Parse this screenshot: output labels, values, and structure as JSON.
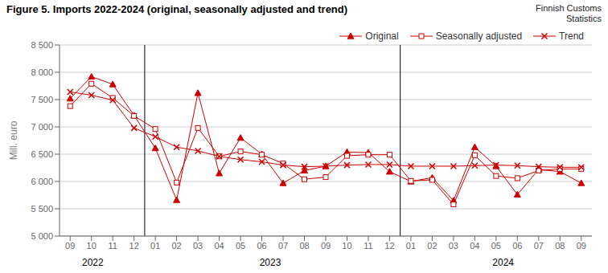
{
  "chart_data": {
    "type": "line",
    "title": "Figure 5. Imports  2022-2024  (original, seasonally adjusted and trend)",
    "subtitle": "Finnish Customs\nStatistics",
    "ylabel": "Mill. euro",
    "ylim": [
      5000,
      8500
    ],
    "yticks": [
      {
        "value": 5000,
        "label": "5 000"
      },
      {
        "value": 5500,
        "label": "5 500"
      },
      {
        "value": 6000,
        "label": "6 000"
      },
      {
        "value": 6500,
        "label": "6 500"
      },
      {
        "value": 7000,
        "label": "7 000"
      },
      {
        "value": 7500,
        "label": "7 500"
      },
      {
        "value": 8000,
        "label": "8 000"
      },
      {
        "value": 8500,
        "label": "8 500"
      }
    ],
    "grid": true,
    "legend": "upper right",
    "categories": [
      "09",
      "10",
      "11",
      "12",
      "01",
      "02",
      "03",
      "04",
      "05",
      "06",
      "07",
      "08",
      "09",
      "10",
      "11",
      "12",
      "01",
      "02",
      "03",
      "04",
      "05",
      "06",
      "07",
      "08",
      "09"
    ],
    "annotations": [
      {
        "text": "2022",
        "first": 0,
        "last": 3
      },
      {
        "text": "2023",
        "first": 4,
        "last": 15
      },
      {
        "text": "2024",
        "first": 16,
        "last": 24
      }
    ],
    "series": [
      {
        "name": "Original",
        "color": "#cc0000",
        "marker": "triangle",
        "line_style": "solid",
        "values": [
          7520,
          7920,
          7780,
          7210,
          6610,
          5660,
          7620,
          6150,
          6800,
          6500,
          5970,
          6200,
          6280,
          6540,
          6530,
          6180,
          6000,
          6070,
          5650,
          6630,
          6280,
          5760,
          6220,
          6180,
          5970
        ]
      },
      {
        "name": "Seasonally adjusted",
        "color": "#cc0000",
        "marker": "square",
        "line_style": "solid",
        "values": [
          7380,
          7790,
          7530,
          7200,
          6960,
          5980,
          6980,
          6460,
          6550,
          6490,
          6330,
          6040,
          6080,
          6470,
          6490,
          6490,
          6010,
          6030,
          5580,
          6480,
          6100,
          6060,
          6200,
          6230,
          6230
        ]
      },
      {
        "name": "Trend",
        "color": "#cc0000",
        "marker": "x",
        "line_style": "solid",
        "values": [
          7640,
          7580,
          7490,
          6980,
          6820,
          6630,
          6560,
          6460,
          6400,
          6360,
          6300,
          6270,
          6280,
          6300,
          6310,
          6310,
          6280,
          6280,
          6280,
          6290,
          6300,
          6290,
          6270,
          6260,
          6260
        ]
      }
    ]
  }
}
